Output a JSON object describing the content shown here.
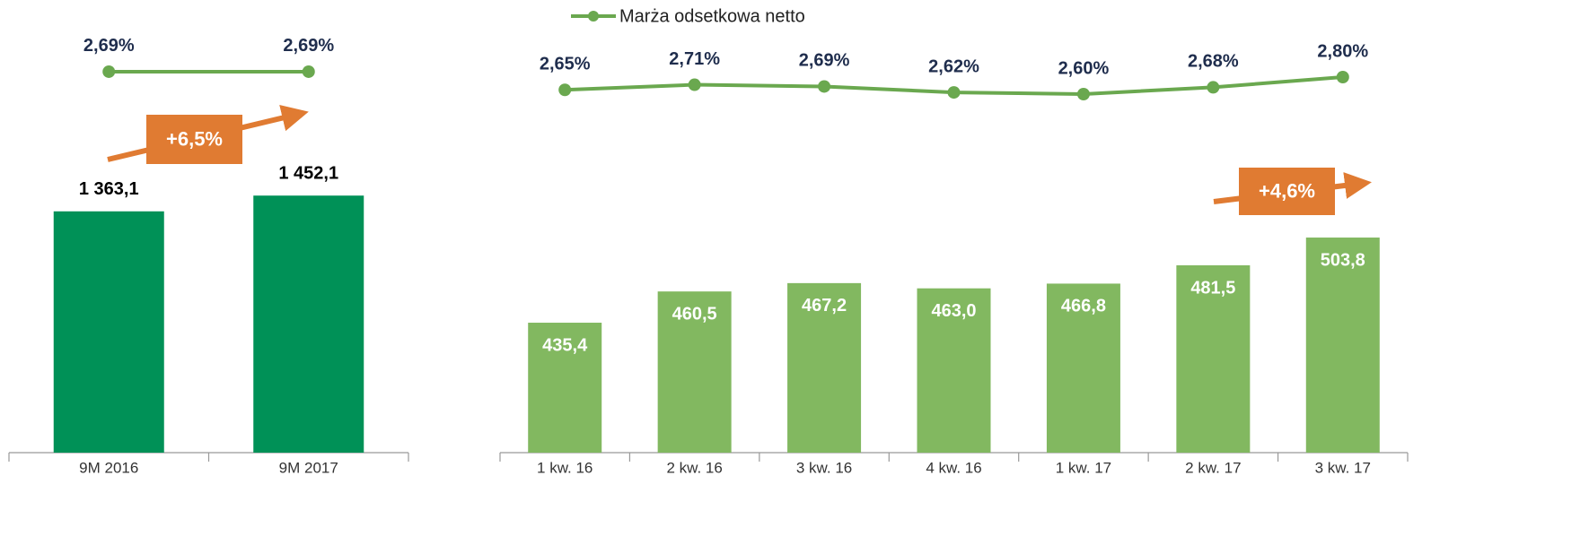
{
  "chart_data": [
    {
      "type": "bar",
      "categories": [
        "9M 2016",
        "9M 2017"
      ],
      "ylim": [
        0,
        1600
      ],
      "y2lim": [
        2.6,
        2.8
      ],
      "annotation": "+6,5%",
      "series": [
        {
          "type": "bar",
          "color": "#009157",
          "values": [
            1363.1,
            1452.1
          ],
          "value_labels": [
            "1 363,1",
            "1 452,1"
          ]
        },
        {
          "type": "line",
          "axis": "y2",
          "color": "#6aa84f",
          "values": [
            2.69,
            2.69
          ],
          "value_labels": [
            "2,69%",
            "2,69%"
          ]
        }
      ]
    },
    {
      "type": "bar",
      "categories": [
        "1 kw. 16",
        "2 kw. 16",
        "3 kw. 16",
        "4 kw. 16",
        "1 kw. 17",
        "2 kw. 17",
        "3 kw. 17"
      ],
      "ylim": [
        331,
        560
      ],
      "y2lim": [
        2.6,
        2.8
      ],
      "annotation": "+4,6%",
      "series": [
        {
          "type": "bar",
          "color": "#82b860",
          "values": [
            435.4,
            460.5,
            467.2,
            463.0,
            466.8,
            481.5,
            503.8
          ],
          "value_labels": [
            "435,4",
            "460,5",
            "467,2",
            "463,0",
            "466,8",
            "481,5",
            "503,8"
          ]
        },
        {
          "type": "line",
          "axis": "y2",
          "name": "Marża odsetkowa netto",
          "color": "#6aa84f",
          "values": [
            2.65,
            2.71,
            2.69,
            2.62,
            2.6,
            2.68,
            2.8
          ],
          "value_labels": [
            "2,65%",
            "2,71%",
            "2,69%",
            "2,62%",
            "2,60%",
            "2,68%",
            "2,80%"
          ]
        }
      ]
    }
  ]
}
